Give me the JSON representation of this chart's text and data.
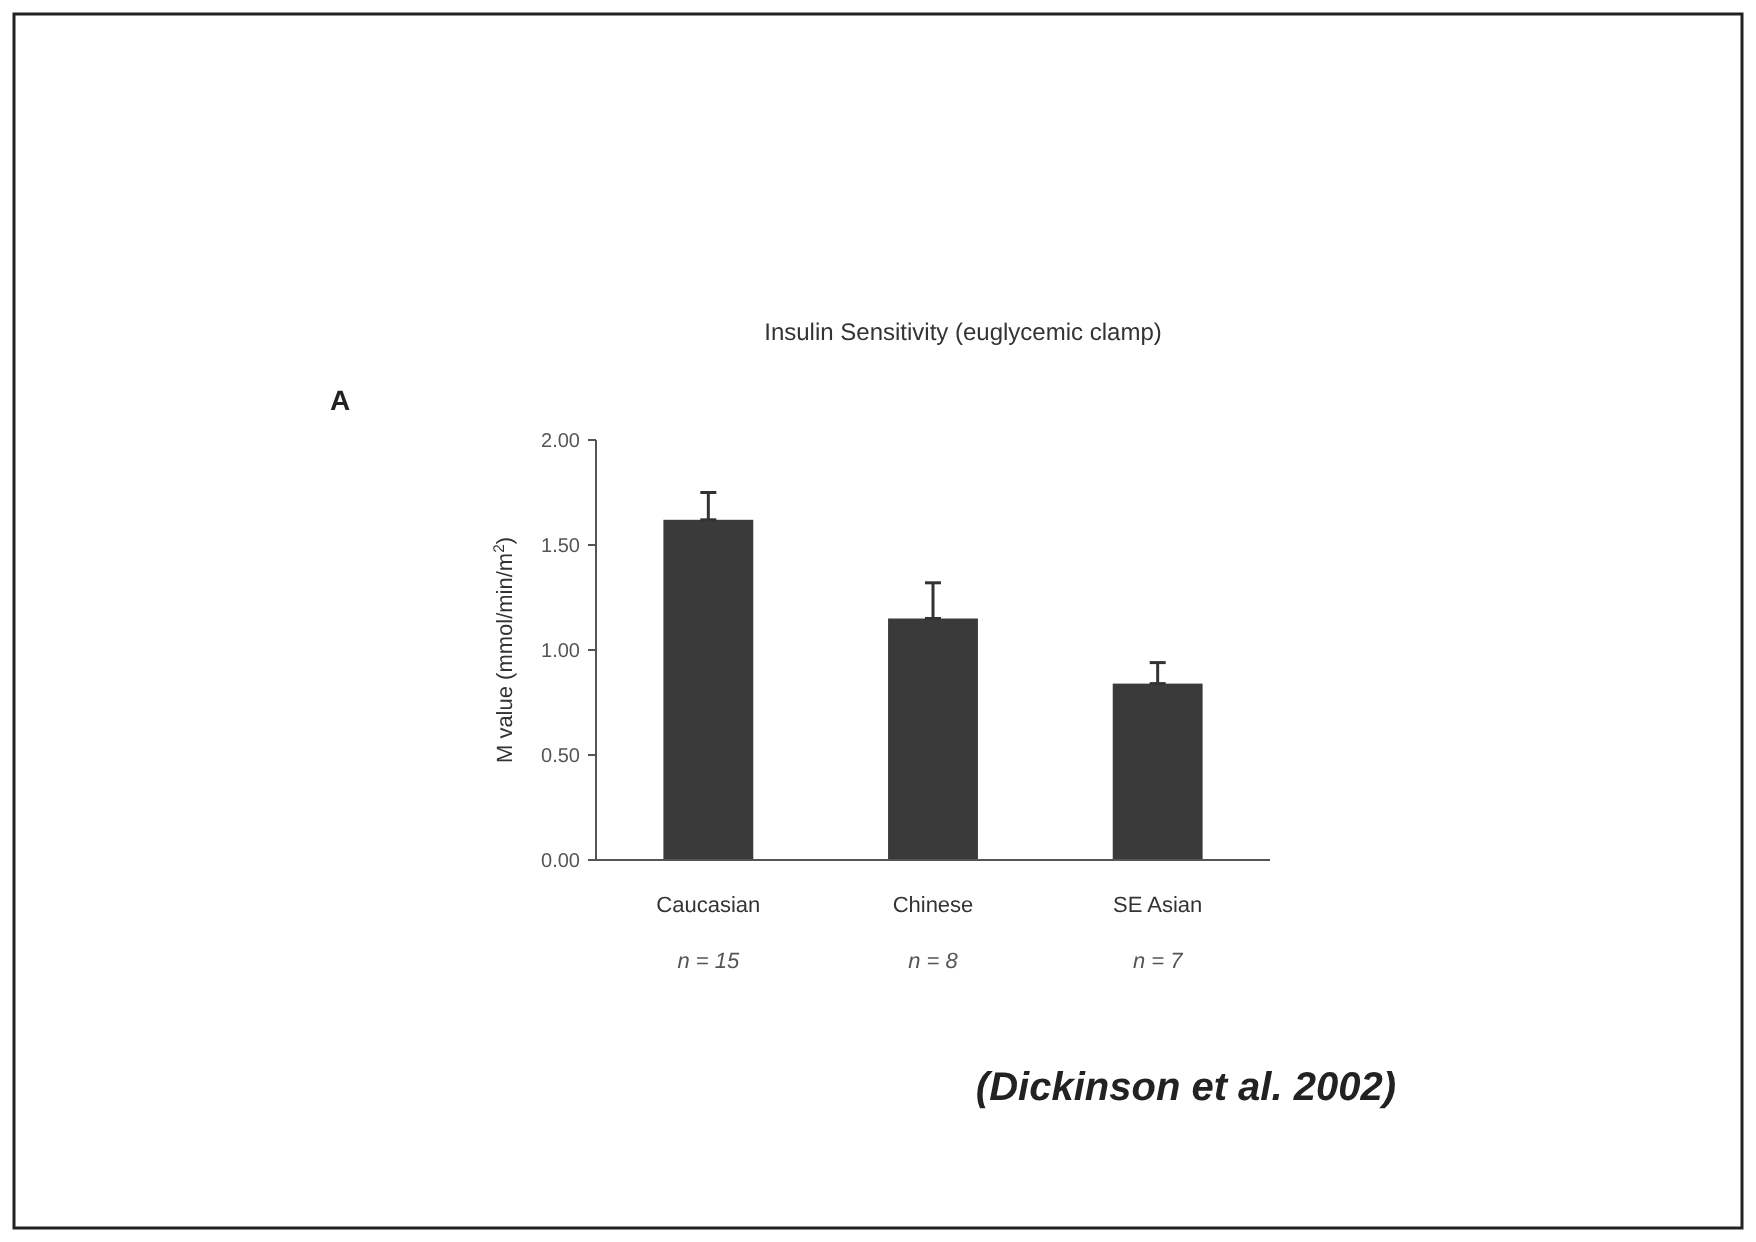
{
  "chart_data": {
    "type": "bar",
    "title": "Insulin Sensitivity (euglycemic clamp)",
    "ylabel": "M value (mmol/min/m$^{2}$)",
    "categories": [
      "Caucasian",
      "Chinese",
      "SE Asian"
    ],
    "values": [
      1.62,
      1.15,
      0.84
    ],
    "errors": [
      [
        1.62,
        1.75
      ],
      [
        1.15,
        1.32
      ],
      [
        0.84,
        0.94
      ]
    ],
    "color": "#3a3a3a",
    "ylim": [
      0,
      2
    ],
    "yticks": [
      {
        "value": 0,
        "label": "0.00"
      },
      {
        "value": 0.5,
        "label": "0.50"
      },
      {
        "value": 1,
        "label": "1.00"
      },
      {
        "value": 1.5,
        "label": "1.50"
      },
      {
        "value": 2,
        "label": "2.00"
      }
    ],
    "annotations": [
      "A",
      "n = 15",
      "n = 8",
      "n = 7",
      "(Dickinson et al. 2002)"
    ]
  }
}
